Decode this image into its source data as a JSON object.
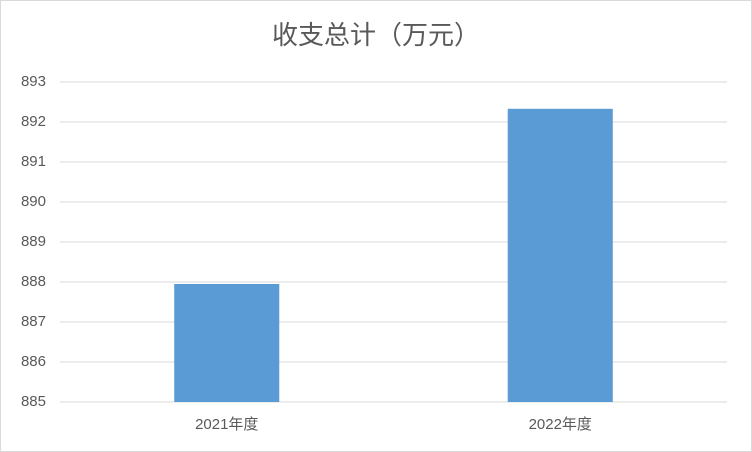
{
  "chart_data": {
    "type": "bar",
    "title": "收支总计（万元）",
    "categories": [
      "2021年度",
      "2022年度"
    ],
    "values": [
      887.95,
      892.33
    ],
    "color": "#5b9bd5",
    "ylim": [
      885,
      893
    ],
    "yticks": [
      885,
      886,
      887,
      888,
      889,
      890,
      891,
      892,
      893
    ],
    "grid": true
  }
}
